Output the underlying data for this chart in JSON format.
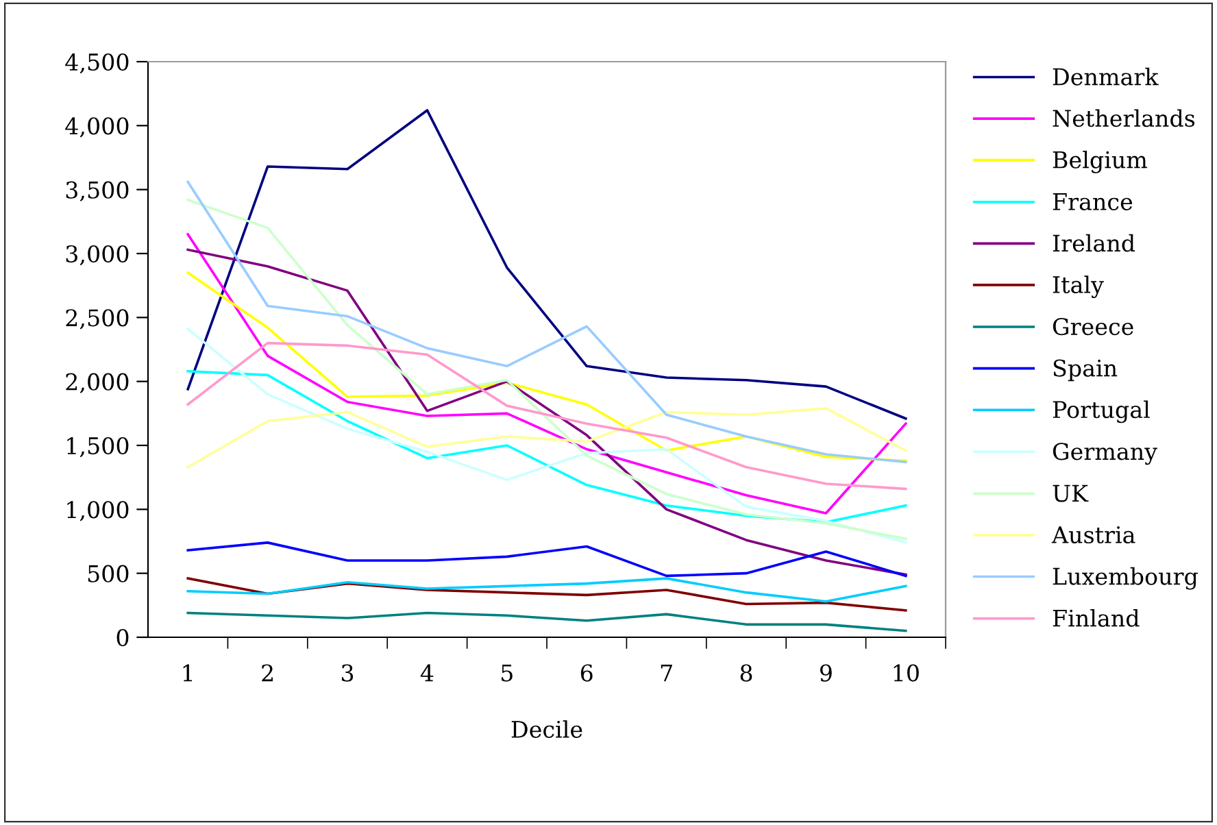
{
  "chart_data": {
    "type": "line",
    "xlabel": "Decile",
    "categories": [
      "1",
      "2",
      "3",
      "4",
      "5",
      "6",
      "7",
      "8",
      "9",
      "10"
    ],
    "ylim": [
      0,
      4500
    ],
    "yticks": [
      0,
      500,
      {
        "value": 1000,
        "label": "1,000"
      },
      {
        "value": 1500,
        "label": "1,500"
      },
      {
        "value": 2000,
        "label": "2,000"
      },
      {
        "value": 2500,
        "label": "2,500"
      },
      {
        "value": 3000,
        "label": "3,000"
      },
      {
        "value": 3500,
        "label": "3,500"
      },
      {
        "value": 4000,
        "label": "4,000"
      },
      {
        "value": 4500,
        "label": "4,500"
      }
    ],
    "grid": false,
    "legend": "right",
    "marker": "none",
    "line_style": "solid",
    "series": [
      {
        "name": "Denmark",
        "color": "#000080",
        "values": [
          1940,
          3680,
          3660,
          4120,
          2890,
          2120,
          2030,
          2010,
          1960,
          1710
        ]
      },
      {
        "name": "Netherlands",
        "color": "#ff00ff",
        "values": [
          3150,
          2200,
          1840,
          1730,
          1750,
          1470,
          1290,
          1110,
          970,
          1670
        ]
      },
      {
        "name": "Belgium",
        "color": "#ffff00",
        "values": [
          2850,
          2420,
          1880,
          1890,
          1990,
          1820,
          1460,
          1570,
          1410,
          1380
        ]
      },
      {
        "name": "France",
        "color": "#00ffff",
        "values": [
          2080,
          2050,
          1690,
          1400,
          1500,
          1190,
          1030,
          950,
          900,
          1030
        ]
      },
      {
        "name": "Ireland",
        "color": "#800080",
        "values": [
          3030,
          2900,
          2710,
          1770,
          2000,
          1580,
          1000,
          760,
          600,
          490
        ]
      },
      {
        "name": "Italy",
        "color": "#800000",
        "values": [
          460,
          340,
          420,
          370,
          350,
          330,
          370,
          260,
          270,
          210
        ]
      },
      {
        "name": "Greece",
        "color": "#008080",
        "values": [
          190,
          170,
          150,
          190,
          170,
          130,
          180,
          100,
          100,
          50
        ]
      },
      {
        "name": "Spain",
        "color": "#0000ff",
        "values": [
          680,
          740,
          600,
          600,
          630,
          710,
          480,
          500,
          670,
          480
        ]
      },
      {
        "name": "Portugal",
        "color": "#00ccff",
        "values": [
          360,
          340,
          430,
          380,
          400,
          420,
          460,
          350,
          280,
          400
        ]
      },
      {
        "name": "Germany",
        "color": "#ccffff",
        "values": [
          2410,
          1900,
          1630,
          1450,
          1230,
          1440,
          1470,
          1020,
          910,
          740
        ]
      },
      {
        "name": "UK",
        "color": "#ccffcc",
        "values": [
          3420,
          3200,
          2440,
          1900,
          2010,
          1420,
          1120,
          960,
          890,
          770
        ]
      },
      {
        "name": "Austria",
        "color": "#ffff99",
        "values": [
          1330,
          1690,
          1760,
          1490,
          1570,
          1530,
          1760,
          1740,
          1790,
          1460
        ]
      },
      {
        "name": "Luxembourg",
        "color": "#99ccff",
        "values": [
          3560,
          2590,
          2510,
          2260,
          2120,
          2430,
          1740,
          1570,
          1430,
          1370
        ]
      },
      {
        "name": "Finland",
        "color": "#ff99cc",
        "values": [
          1820,
          2300,
          2280,
          2210,
          1810,
          1670,
          1560,
          1330,
          1200,
          1160
        ]
      }
    ]
  }
}
